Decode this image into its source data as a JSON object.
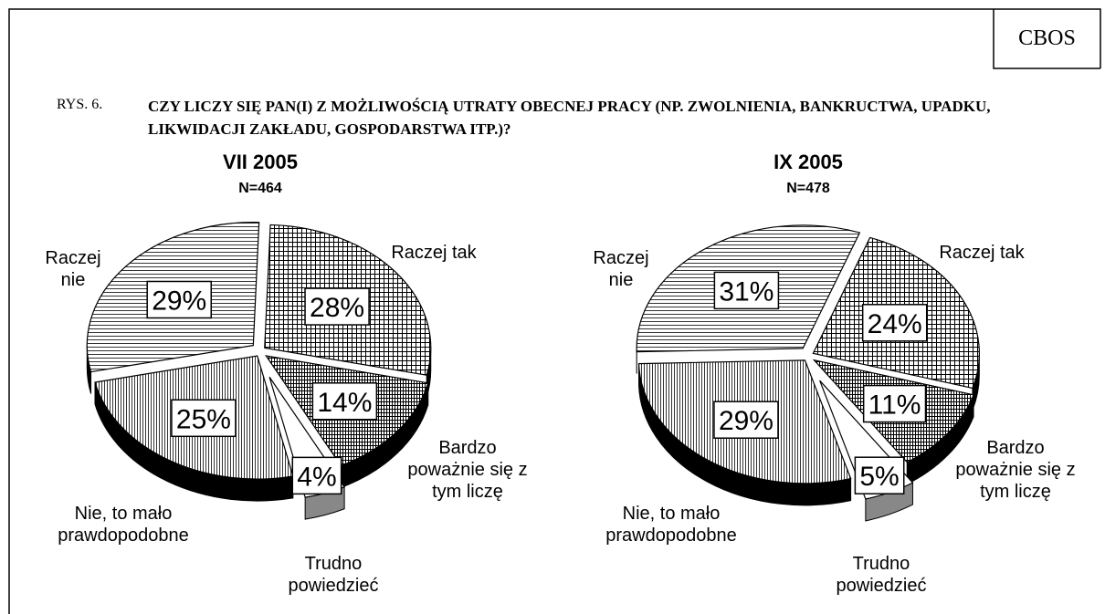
{
  "header": {
    "logo": "CBOS",
    "figure": "RYS. 6.",
    "question": "CZY LICZY SIĘ PAN(I) Z MOŻLIWOŚCIĄ UTRATY OBECNEJ PRACY (NP. ZWOLNIENIA, BANKRUCTWA, UPADKU, LIKWIDACJI ZAKŁADU, GOSPODARSTWA ITP.)?"
  },
  "chart_data": [
    {
      "type": "pie",
      "title": "VII 2005",
      "subtitle": "N=464",
      "categories": [
        "Raczej tak",
        "Bardzo poważnie się z tym liczę",
        "Trudno powiedzieć",
        "Nie, to mało prawdopodobne",
        "Raczej nie"
      ],
      "values": [
        28,
        14,
        4,
        25,
        29
      ],
      "value_labels": [
        "28%",
        "14%",
        "4%",
        "25%",
        "29%"
      ]
    },
    {
      "type": "pie",
      "title": "IX 2005",
      "subtitle": "N=478",
      "categories": [
        "Raczej tak",
        "Bardzo poważnie się z tym liczę",
        "Trudno powiedzieć",
        "Nie, to mało prawdopodobne",
        "Raczej nie"
      ],
      "values": [
        24,
        11,
        5,
        29,
        31
      ],
      "value_labels": [
        "24%",
        "11%",
        "5%",
        "29%",
        "31%"
      ]
    }
  ]
}
